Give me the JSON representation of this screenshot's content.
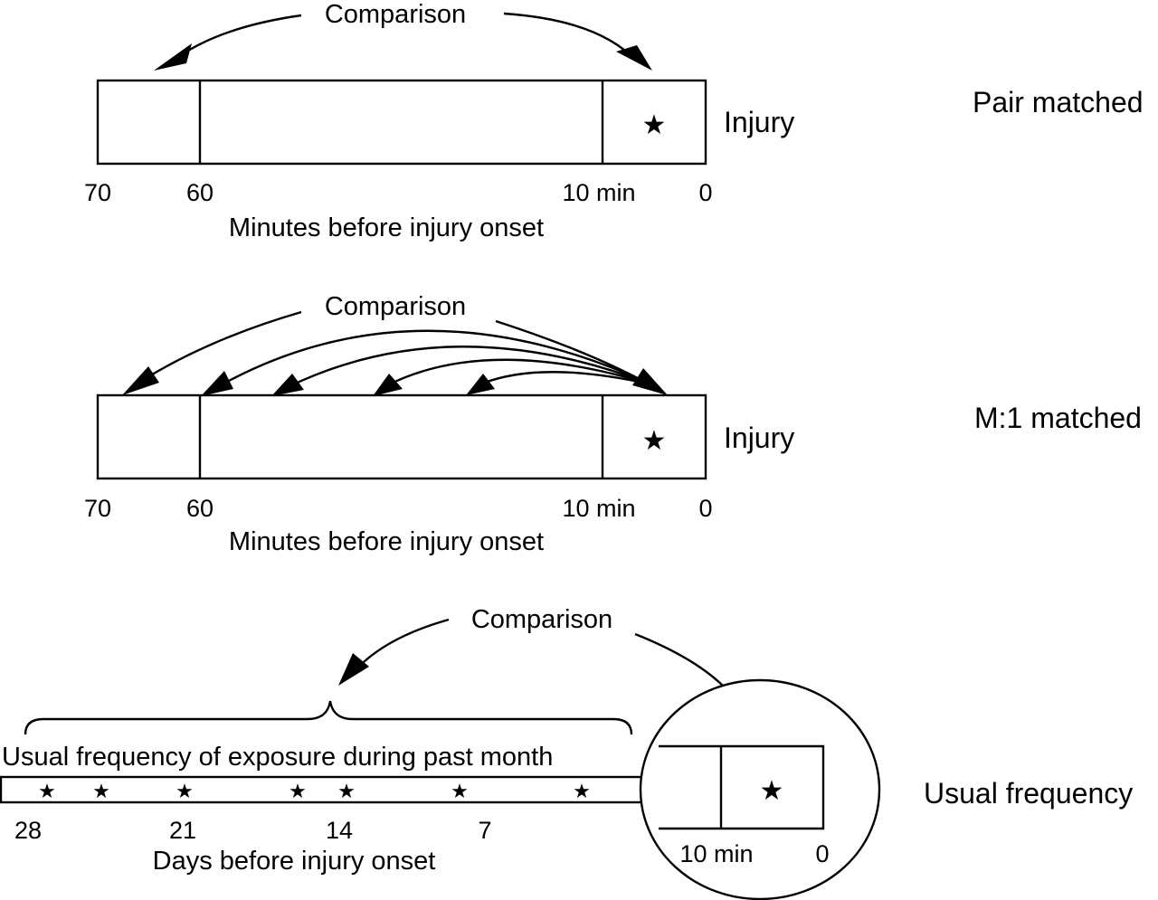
{
  "panels": {
    "pair": {
      "design_label": "Pair matched",
      "comparison_label": "Comparison",
      "injury_label": "Injury",
      "star_glyph": "★",
      "ticks": [
        "70",
        "60",
        "10 min",
        "0"
      ],
      "axis_label": "Minutes before injury onset"
    },
    "m1": {
      "design_label": "M:1 matched",
      "comparison_label": "Comparison",
      "injury_label": "Injury",
      "star_glyph": "★",
      "ticks": [
        "70",
        "60",
        "10 min",
        "0"
      ],
      "axis_label": "Minutes before injury onset"
    },
    "usual": {
      "design_label": "Usual frequency",
      "comparison_label": "Comparison",
      "bracket_label": "Usual frequency of exposure during past month",
      "star_glyph": "★",
      "ticks": [
        "28",
        "21",
        "14",
        "7"
      ],
      "axis_label": "Days before injury onset",
      "inset_ticks": [
        "10 min",
        "0"
      ]
    }
  }
}
